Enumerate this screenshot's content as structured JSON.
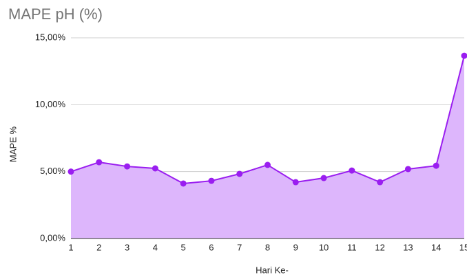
{
  "chart_data": {
    "type": "area",
    "title": "MAPE pH (%)",
    "x_label": "Hari Ke-",
    "y_label": "MAPE %",
    "categories": [
      "1",
      "2",
      "3",
      "4",
      "5",
      "6",
      "7",
      "8",
      "9",
      "10",
      "11",
      "12",
      "13",
      "14",
      "15"
    ],
    "series": [
      {
        "name": "MAPE pH",
        "color": "#9a1ef0",
        "fill": "#ddb6fc",
        "values": [
          5.0,
          5.7,
          5.39,
          5.24,
          4.11,
          4.31,
          4.83,
          5.5,
          4.21,
          4.52,
          5.08,
          4.21,
          5.19,
          5.44,
          13.66
        ]
      }
    ],
    "ylim": [
      0,
      15
    ],
    "yticks": [
      {
        "value": 0,
        "label": "0,00%"
      },
      {
        "value": 5,
        "label": "5,00%"
      },
      {
        "value": 10,
        "label": "10,00%"
      },
      {
        "value": 15,
        "label": "15,00%"
      }
    ],
    "grid": true,
    "markers": true
  }
}
